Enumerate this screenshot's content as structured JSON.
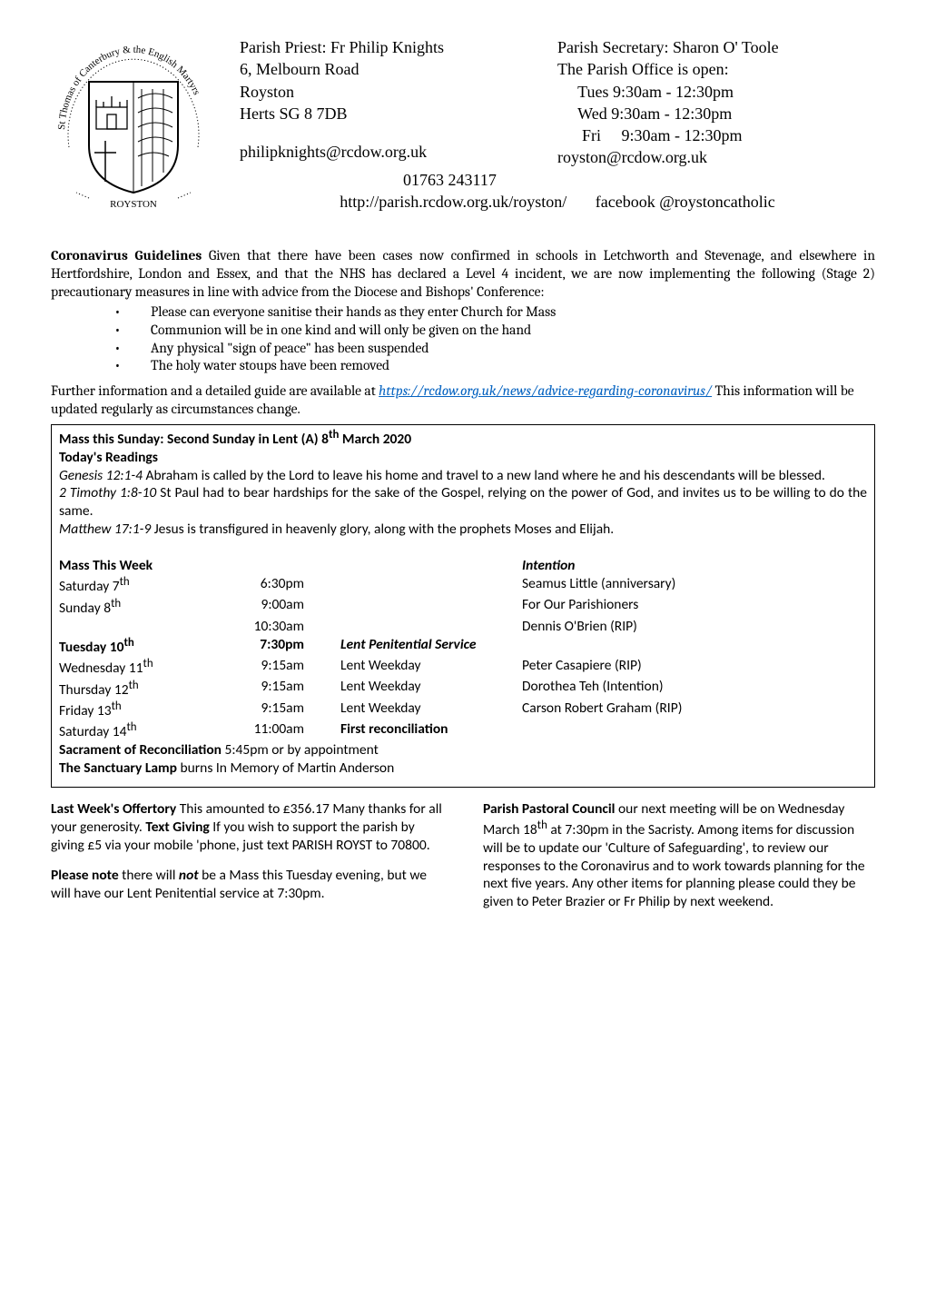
{
  "header": {
    "left": {
      "line1": "Parish Priest: Fr Philip Knights",
      "line2": "6, Melbourn Road",
      "line3": "Royston",
      "line4": "Herts SG 8 7DB",
      "email": "philipknights@rcdow.org.uk"
    },
    "right": {
      "line1": "Parish Secretary: Sharon O' Toole",
      "line2": "The Parish Office is open:",
      "line3": "     Tues 9:30am - 12:30pm",
      "line4": "     Wed 9:30am - 12:30pm",
      "line5": "      Fri     9:30am - 12:30pm",
      "email": "royston@rcdow.org.uk"
    },
    "tel": "01763 243117",
    "url": "http://parish.rcdow.org.uk/royston/",
    "facebook": "facebook @roystoncatholic"
  },
  "logo": {
    "arc_text_top": "St Thomas of Canterbury & the English Martyrs",
    "bottom_label": "ROYSTON"
  },
  "covid": {
    "heading": "Coronavirus Guidelines ",
    "heading_rest": "Given that there have been cases now confirmed in schools in Letchworth and Stevenage, and elsewhere in Hertfordshire, London and Essex, and that the NHS has declared a Level 4 incident, we are now implementing the following (Stage 2) precautionary  measures in line with advice from the Diocese and Bishops' Conference:",
    "bullets": [
      "Please can everyone sanitise their hands as they enter Church for Mass",
      "Communion will be in one kind and will only be given on the hand",
      "Any physical \"sign of peace\" has been suspended",
      "The holy water stoups have been removed"
    ],
    "further_pre": "Further information and a detailed guide are available at ",
    "link_text": "https://rcdow.org.uk/news/advice-regarding-coronavirus/",
    "further_post": " This information will be updated regularly as circumstances change."
  },
  "box": {
    "mass_heading": "Mass this Sunday: Second  Sunday in Lent (A)  8th  March 2020",
    "readings_heading": "Today's Readings",
    "r1_ref": "Genesis 12:1-4",
    "r1_text": "  Abraham is called by the Lord to leave his home and travel to a new land where he and his descendants will be blessed.",
    "r2_ref": "2 Timothy 1:8-10",
    "r2_text": "  St Paul had to bear hardships for the sake of the Gospel, relying on the power of God, and invites us to be willing to do the same.",
    "r3_ref": "Matthew 17:1-9",
    "r3_text": "  Jesus is transfigured in heavenly glory, along with the prophets Moses and Elijah.",
    "mtw_label": "Mass This Week",
    "intention_label": "Intention",
    "rows": [
      {
        "day": "Saturday 7",
        "sup": "th",
        "time": "6:30pm",
        "act": "",
        "int": "Seamus Little (anniversary)",
        "bold": false
      },
      {
        "day": "Sunday 8",
        "sup": "th",
        "time": "9:00am",
        "act": "",
        "int": "For Our Parishioners",
        "bold": false
      },
      {
        "day": "",
        "sup": "",
        "time": "10:30am",
        "act": "",
        "int": "Dennis O'Brien (RIP)",
        "bold": false
      },
      {
        "day": "Tuesday 10",
        "sup": "th",
        "time": "7:30pm",
        "act": "Lent Penitential  Service",
        "int": "",
        "bold": true,
        "act_italic": true
      },
      {
        "day": "Wednesday 11",
        "sup": "th",
        "time": "9:15am",
        "act": "Lent Weekday",
        "int": "Peter Casapiere (RIP)",
        "bold": false
      },
      {
        "day": "Thursday 12",
        "sup": "th",
        "time": "9:15am",
        "act": "Lent Weekday",
        "int": "Dorothea Teh (Intention)",
        "bold": false
      },
      {
        "day": "Friday  13",
        "sup": "th",
        "time": "9:15am",
        "act": "Lent Weekday",
        "int": "Carson Robert Graham (RIP)",
        "bold": false
      },
      {
        "day": "Saturday 14",
        "sup": "th",
        "time": "11:00am",
        "act": "First reconciliation",
        "int": "",
        "bold": false,
        "act_bold": true
      }
    ],
    "sacrament_line_pre": "Sacrament of Reconciliation ",
    "sacrament_line_post": "5:45pm or by appointment",
    "sanctuary_line_pre": "The Sanctuary Lamp ",
    "sanctuary_line_post": "burns In Memory of Martin Anderson"
  },
  "cols": {
    "left": {
      "p1_b1": "Last Week's Offertory",
      "p1_t1": "    This amounted to £356.17 Many  thanks for all your generosity. ",
      "p1_b2": "Text Giving",
      "p1_t2": "    If you wish to support the parish by giving £5 via your mobile 'phone, just text PARISH ROYST to 70800.",
      "p2_b1": "Please note ",
      "p2_t1": "there will ",
      "p2_i1": "not",
      "p2_t2": " be a Mass this Tuesday evening, but we will have our Lent Penitential service at 7:30pm."
    },
    "right": {
      "p1_b1": "Parish Pastoral Council ",
      "p1_t1": "our next meeting will be on Wednesday March 18",
      "p1_sup": "th",
      "p1_t2": " at 7:30pm in the Sacristy. Among items for discussion will be to update our 'Culture of Safeguarding', to review our responses to the Coronavirus and to work towards planning for the next five years. Any other items for planning please could they be given to Peter Brazier or Fr Philip by next weekend."
    }
  }
}
